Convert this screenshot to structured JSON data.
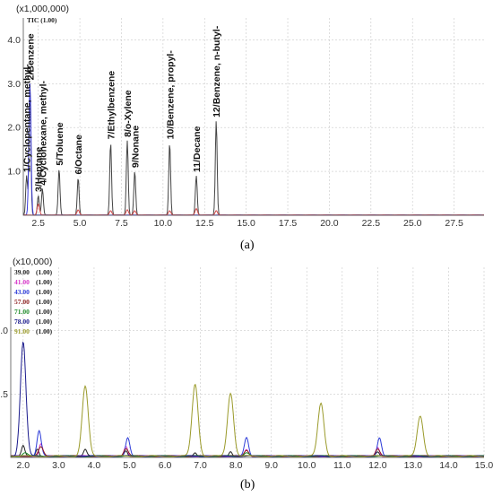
{
  "chart_data": [
    {
      "id": "a",
      "type": "line",
      "caption": "(a)",
      "multiplier_label": "(x1,000,000)",
      "legend_label": "TIC (1.00)",
      "x_range": [
        1.6,
        29.3
      ],
      "y_range": [
        0,
        4.5
      ],
      "x_ticks": [
        2.5,
        5.0,
        7.5,
        10.0,
        12.5,
        15.0,
        17.5,
        20.0,
        22.5,
        25.0,
        27.5
      ],
      "y_ticks": [
        1.0,
        2.0,
        3.0,
        4.0
      ],
      "grid": true,
      "series": [
        {
          "name": "TIC (1.00)",
          "color": "#444444",
          "peaks": [
            {
              "x": 2.0,
              "y": 3.0,
              "label": "2/Benzene"
            },
            {
              "x": 1.8,
              "y": 0.9,
              "label": "1/Cyclopentane, methyl-"
            },
            {
              "x": 2.5,
              "y": 0.45,
              "label": "3/Heptane"
            },
            {
              "x": 2.75,
              "y": 0.6,
              "label": "4/Cyclohexane, methyl-"
            },
            {
              "x": 3.75,
              "y": 1.05,
              "label": "5/Toluene"
            },
            {
              "x": 4.9,
              "y": 0.85,
              "label": "6/Octane"
            },
            {
              "x": 6.85,
              "y": 1.65,
              "label": "7/Ethylbenzene"
            },
            {
              "x": 7.85,
              "y": 1.7,
              "label": "8/o-Xylene"
            },
            {
              "x": 8.3,
              "y": 1.0,
              "label": "9/Nonane"
            },
            {
              "x": 10.4,
              "y": 1.65,
              "label": "10/Benzene, propyl-"
            },
            {
              "x": 12.0,
              "y": 0.9,
              "label": "11/Decane"
            },
            {
              "x": 13.2,
              "y": 2.15,
              "label": "12/Benzene, n-butyl-"
            }
          ]
        },
        {
          "name": "blue trace",
          "color": "#3b3bdc",
          "peaks": [
            {
              "x": 2.0,
              "y": 3.0
            }
          ]
        },
        {
          "name": "red trace",
          "color": "#d24a4a",
          "peaks": [
            {
              "x": 2.5,
              "y": 0.25
            },
            {
              "x": 4.9,
              "y": 0.12
            },
            {
              "x": 6.85,
              "y": 0.1
            },
            {
              "x": 7.85,
              "y": 0.12
            },
            {
              "x": 8.3,
              "y": 0.1
            },
            {
              "x": 10.4,
              "y": 0.1
            },
            {
              "x": 12.0,
              "y": 0.15
            },
            {
              "x": 13.2,
              "y": 0.1
            }
          ]
        }
      ]
    },
    {
      "id": "b",
      "type": "line",
      "caption": "(b)",
      "multiplier_label": "(x10,000)",
      "x_range": [
        1.65,
        15.0
      ],
      "y_range": [
        0,
        1.5
      ],
      "x_ticks": [
        2.0,
        3.0,
        4.0,
        5.0,
        6.0,
        7.0,
        8.0,
        9.0,
        10.0,
        11.0,
        12.0,
        13.0,
        14.0,
        15.0
      ],
      "y_ticks": [
        0.5,
        1.0
      ],
      "grid": true,
      "legend": [
        {
          "mz": "39.00",
          "scale": "(1.00)",
          "color": "#222222"
        },
        {
          "mz": "41.00",
          "scale": "(1.00)",
          "color": "#d633c8"
        },
        {
          "mz": "43.00",
          "scale": "(1.00)",
          "color": "#2c3bd8"
        },
        {
          "mz": "57.00",
          "scale": "(1.00)",
          "color": "#8b1f1f"
        },
        {
          "mz": "71.00",
          "scale": "(1.00)",
          "color": "#1f8b2a"
        },
        {
          "mz": "78.00",
          "scale": "(1.00)",
          "color": "#1a1a8c"
        },
        {
          "mz": "91.00",
          "scale": "(1.00)",
          "color": "#9a9a2a"
        }
      ],
      "series": [
        {
          "name": "39.00",
          "color": "#222222",
          "peaks": [
            {
              "x": 2.0,
              "y": 0.08
            },
            {
              "x": 2.4,
              "y": 0.06
            },
            {
              "x": 3.75,
              "y": 0.05
            },
            {
              "x": 4.9,
              "y": 0.04
            },
            {
              "x": 6.85,
              "y": 0.03
            },
            {
              "x": 7.85,
              "y": 0.04
            },
            {
              "x": 12.0,
              "y": 0.03
            }
          ]
        },
        {
          "name": "41.00",
          "color": "#d633c8",
          "peaks": [
            {
              "x": 2.5,
              "y": 0.1
            },
            {
              "x": 4.9,
              "y": 0.08
            },
            {
              "x": 8.3,
              "y": 0.05
            },
            {
              "x": 12.0,
              "y": 0.07
            }
          ]
        },
        {
          "name": "43.00",
          "color": "#2c3bd8",
          "peaks": [
            {
              "x": 2.45,
              "y": 0.2
            },
            {
              "x": 4.95,
              "y": 0.15
            },
            {
              "x": 8.3,
              "y": 0.15
            },
            {
              "x": 12.05,
              "y": 0.15
            }
          ]
        },
        {
          "name": "57.00",
          "color": "#8b1f1f",
          "peaks": [
            {
              "x": 2.5,
              "y": 0.07
            },
            {
              "x": 4.9,
              "y": 0.06
            },
            {
              "x": 8.3,
              "y": 0.05
            },
            {
              "x": 12.0,
              "y": 0.06
            }
          ]
        },
        {
          "name": "71.00",
          "color": "#1f8b2a",
          "peaks": [
            {
              "x": 2.05,
              "y": 0.03
            },
            {
              "x": 8.3,
              "y": 0.03
            }
          ]
        },
        {
          "name": "78.00",
          "color": "#1a1a8c",
          "peaks": [
            {
              "x": 2.0,
              "y": 0.9
            }
          ]
        },
        {
          "name": "91.00",
          "color": "#9a9a2a",
          "peaks": [
            {
              "x": 3.75,
              "y": 0.55
            },
            {
              "x": 6.85,
              "y": 0.57
            },
            {
              "x": 7.85,
              "y": 0.5
            },
            {
              "x": 10.4,
              "y": 0.42
            },
            {
              "x": 13.2,
              "y": 0.32
            }
          ]
        }
      ]
    }
  ]
}
